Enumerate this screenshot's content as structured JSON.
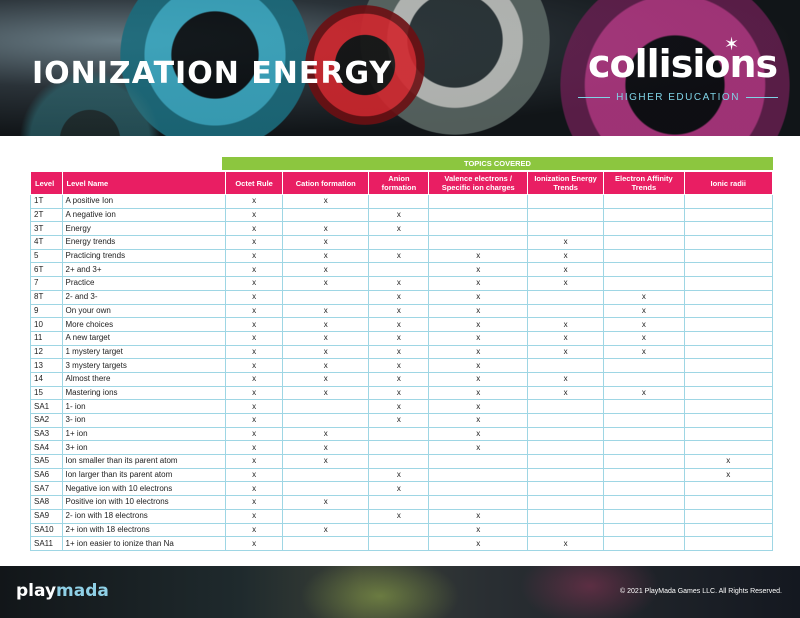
{
  "header": {
    "title": "IONIZATION ENERGY",
    "brand_logo": "collisions",
    "brand_sub": "HIGHER EDUCATION"
  },
  "table": {
    "group_header": "TOPICS COVERED",
    "columns": [
      "Level",
      "Level Name",
      "Octet Rule",
      "Cation formation",
      "Anion formation",
      "Valence electrons / Specific ion charges",
      "Ionization Energy Trends",
      "Electron Affinity Trends",
      "Ionic radii"
    ],
    "rows": [
      [
        "1T",
        "A positive Ion",
        "x",
        "x",
        "",
        "",
        "",
        "",
        ""
      ],
      [
        "2T",
        "A negative ion",
        "x",
        "",
        "x",
        "",
        "",
        "",
        ""
      ],
      [
        "3T",
        "Energy",
        "x",
        "x",
        "x",
        "",
        "",
        "",
        ""
      ],
      [
        "4T",
        "Energy trends",
        "x",
        "x",
        "",
        "",
        "x",
        "",
        ""
      ],
      [
        "5",
        "Practicing trends",
        "x",
        "x",
        "x",
        "x",
        "x",
        "",
        ""
      ],
      [
        "6T",
        "2+ and 3+",
        "x",
        "x",
        "",
        "x",
        "x",
        "",
        ""
      ],
      [
        "7",
        "Practice",
        "x",
        "x",
        "x",
        "x",
        "x",
        "",
        ""
      ],
      [
        "8T",
        "2- and 3-",
        "x",
        "",
        "x",
        "x",
        "",
        "x",
        ""
      ],
      [
        "9",
        "On your own",
        "x",
        "x",
        "x",
        "x",
        "",
        "x",
        ""
      ],
      [
        "10",
        "More choices",
        "x",
        "x",
        "x",
        "x",
        "x",
        "x",
        ""
      ],
      [
        "11",
        "A new target",
        "x",
        "x",
        "x",
        "x",
        "x",
        "x",
        ""
      ],
      [
        "12",
        "1 mystery target",
        "x",
        "x",
        "x",
        "x",
        "x",
        "x",
        ""
      ],
      [
        "13",
        "3 mystery targets",
        "x",
        "x",
        "x",
        "x",
        "",
        "",
        ""
      ],
      [
        "14",
        "Almost there",
        "x",
        "x",
        "x",
        "x",
        "x",
        "",
        ""
      ],
      [
        "15",
        "Mastering ions",
        "x",
        "x",
        "x",
        "x",
        "x",
        "x",
        ""
      ],
      [
        "SA1",
        "1- ion",
        "x",
        "",
        "x",
        "x",
        "",
        "",
        ""
      ],
      [
        "SA2",
        "3- ion",
        "x",
        "",
        "x",
        "x",
        "",
        "",
        ""
      ],
      [
        "SA3",
        "1+ ion",
        "x",
        "x",
        "",
        "x",
        "",
        "",
        ""
      ],
      [
        "SA4",
        "3+ ion",
        "x",
        "x",
        "",
        "x",
        "",
        "",
        ""
      ],
      [
        "SA5",
        "Ion smaller than its parent atom",
        "x",
        "x",
        "",
        "",
        "",
        "",
        "x"
      ],
      [
        "SA6",
        "Ion larger than its parent atom",
        "x",
        "",
        "x",
        "",
        "",
        "",
        "x"
      ],
      [
        "SA7",
        "Negative ion with 10 electrons",
        "x",
        "",
        "x",
        "",
        "",
        "",
        ""
      ],
      [
        "SA8",
        "Positive ion with 10 electrons",
        "x",
        "x",
        "",
        "",
        "",
        "",
        ""
      ],
      [
        "SA9",
        "2- ion with 18 electrons",
        "x",
        "",
        "x",
        "x",
        "",
        "",
        ""
      ],
      [
        "SA10",
        "2+ ion with 18 electrons",
        "x",
        "x",
        "",
        "x",
        "",
        "",
        ""
      ],
      [
        "SA11",
        "1+ ion easier to ionize than Na",
        "x",
        "",
        "",
        "x",
        "x",
        "",
        ""
      ]
    ]
  },
  "footer": {
    "logo_part1": "play",
    "logo_part2": "mada",
    "copyright": "© 2021 PlayMada Games LLC. All Rights Reserved."
  }
}
